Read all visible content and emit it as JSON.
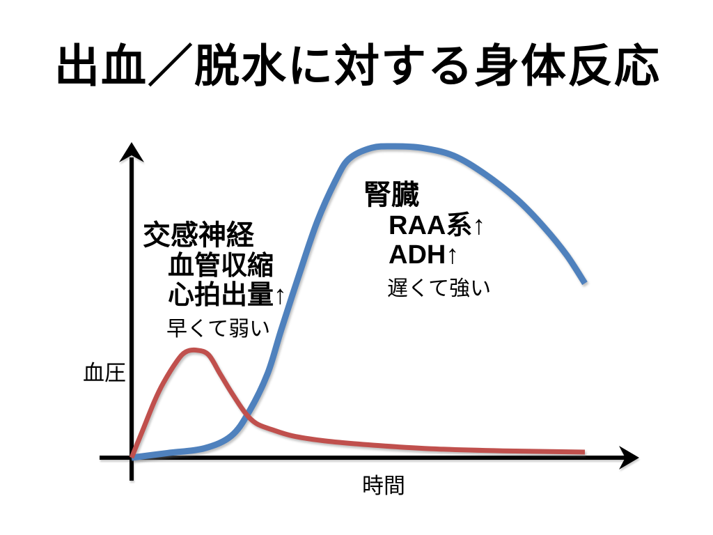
{
  "slide": {
    "title": "出血／脱水に対する身体反応",
    "background": "#FFFFFF"
  },
  "chart_data": {
    "type": "line",
    "title": "出血／脱水に対する身体反応",
    "xlabel": "時間",
    "ylabel": "血圧",
    "axes": {
      "ticks": false,
      "color": "#000000",
      "arrowheads": true,
      "note": "qualitative sketch, no numeric scale; values normalized 0-100"
    },
    "legend_position": "none",
    "grid": false,
    "series": [
      {
        "name": "交感神経（血管収縮・心拍出量↑）早くて弱い",
        "color": "#C0504D",
        "stroke_width": 7,
        "x": [
          0,
          2.5,
          5,
          7,
          10,
          12,
          14.5,
          17,
          19.5,
          22,
          25,
          27.5,
          31,
          35.5,
          42,
          49,
          58.5,
          69,
          82,
          100
        ],
        "y": [
          0,
          9,
          18,
          24,
          31,
          34,
          34.5,
          33,
          27,
          21,
          14.5,
          11,
          9,
          7,
          5.5,
          4.5,
          3.5,
          2.7,
          2.2,
          1.8
        ]
      },
      {
        "name": "腎臓（RAA系↑・ADH↑）遅くて強い",
        "color": "#4F81BD",
        "stroke_width": 9,
        "x": [
          0,
          8,
          16,
          22,
          26,
          30,
          33,
          37,
          41,
          45,
          48,
          53,
          58,
          64,
          71,
          78,
          85,
          91,
          96,
          100
        ],
        "y": [
          0,
          1.5,
          3,
          7,
          15,
          27,
          41,
          59,
          76,
          89,
          96,
          99.5,
          100,
          99.5,
          97,
          91,
          83,
          74,
          65,
          56
        ]
      }
    ],
    "xlim": [
      0,
      100
    ],
    "ylim": [
      0,
      100
    ]
  },
  "annotations": {
    "sympathetic": {
      "heading": "交感神経",
      "line1": "血管収縮",
      "line2": "心拍出量↑",
      "note": "早くて弱い"
    },
    "kidney": {
      "heading": "腎臓",
      "line1": "RAA系↑",
      "line2": "ADH↑",
      "note": "遅くて強い"
    }
  }
}
